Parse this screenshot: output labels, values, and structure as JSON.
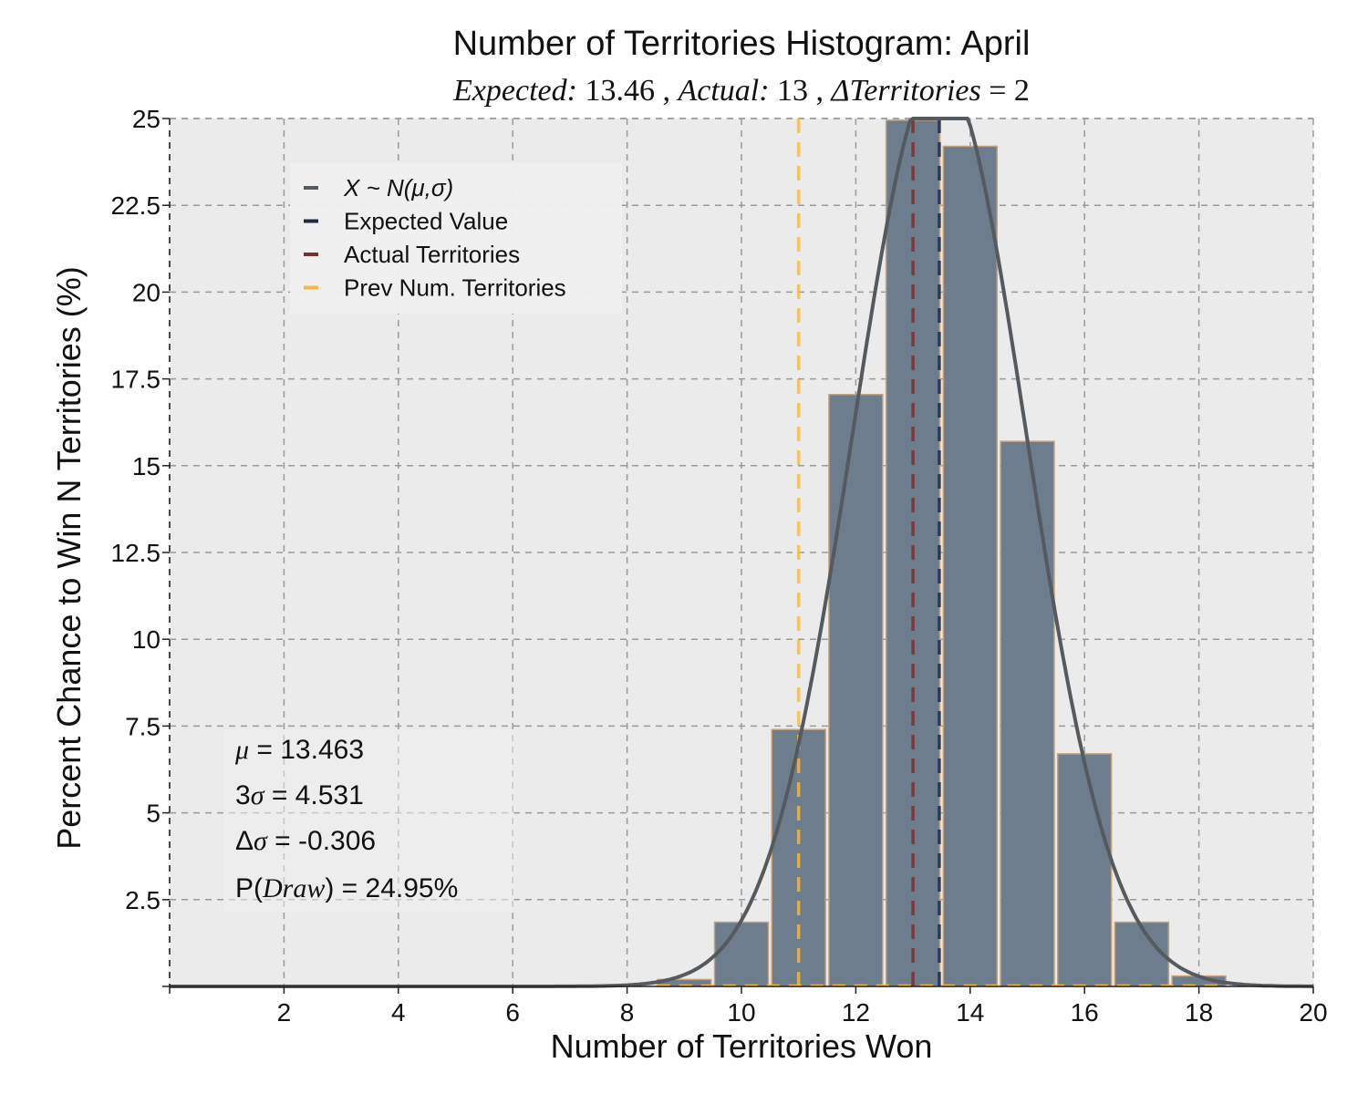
{
  "chart_data": {
    "type": "bar",
    "title": "Number of Territories Histogram: April",
    "subtitle": {
      "expected_label": "Expected:",
      "expected_value": "13.46",
      "actual_label": "Actual:",
      "actual_value": "13",
      "delta_label": "ΔTerritories",
      "delta_value": "= 2",
      "sep": " , "
    },
    "xlabel": "Number of Territories Won",
    "ylabel": "Percent Chance to Win N Territories (%)",
    "xlim": [
      0,
      20
    ],
    "ylim": [
      0,
      25
    ],
    "xticks": [
      2,
      4,
      6,
      8,
      10,
      12,
      14,
      16,
      18,
      20
    ],
    "xtick_labels": [
      "2",
      "4",
      "6",
      "8",
      "10",
      "12",
      "14",
      "16",
      "18",
      "20"
    ],
    "yticks": [
      2.5,
      5,
      7.5,
      10,
      12.5,
      15,
      17.5,
      20,
      22.5,
      25
    ],
    "ytick_labels": [
      "2.5",
      "5",
      "7.5",
      "10",
      "12.5",
      "15",
      "17.5",
      "20",
      "22.5",
      "25"
    ],
    "grid": true,
    "bar_color": "#6e7d8e",
    "bar_edge_color": "#c4a27a",
    "x": [
      9,
      10,
      11,
      12,
      13,
      14,
      15,
      16,
      17,
      18
    ],
    "values": [
      0.2,
      1.85,
      7.4,
      17.05,
      24.95,
      24.2,
      15.7,
      6.7,
      1.85,
      0.3
    ],
    "normal_fit": {
      "mu": 13.463,
      "sigma": 1.51,
      "color": "#555a5f"
    },
    "vlines": [
      {
        "name": "Expected Value",
        "x": 13.46,
        "color": "#1f2a4a"
      },
      {
        "name": "Actual Territories",
        "x": 13,
        "color": "#7a2e2e"
      },
      {
        "name": "Prev Num. Territories",
        "x": 11,
        "color": "#f5b942"
      }
    ],
    "legend": {
      "position": "upper-left",
      "entries": [
        {
          "label": "X ~ N(μ,σ)",
          "color": "#555a5f",
          "italic": true
        },
        {
          "label": "Expected Value",
          "color": "#1f2a4a",
          "italic": false
        },
        {
          "label": "Actual Territories",
          "color": "#7a2e2e",
          "italic": false
        },
        {
          "label": "Prev Num. Territories",
          "color": "#f5b942",
          "italic": false
        }
      ]
    },
    "stats": {
      "mu_symbol": "μ",
      "mu_value": " = 13.463",
      "sigma3_prefix": "3",
      "sigma_symbol": "σ",
      "sigma3_value": " = 4.531",
      "dsigma_prefix": "Δ",
      "dsigma_value": " = -0.306",
      "pdraw_prefix": "P(",
      "pdraw_symbol": "Draw",
      "pdraw_value": ") = 24.95%"
    }
  }
}
